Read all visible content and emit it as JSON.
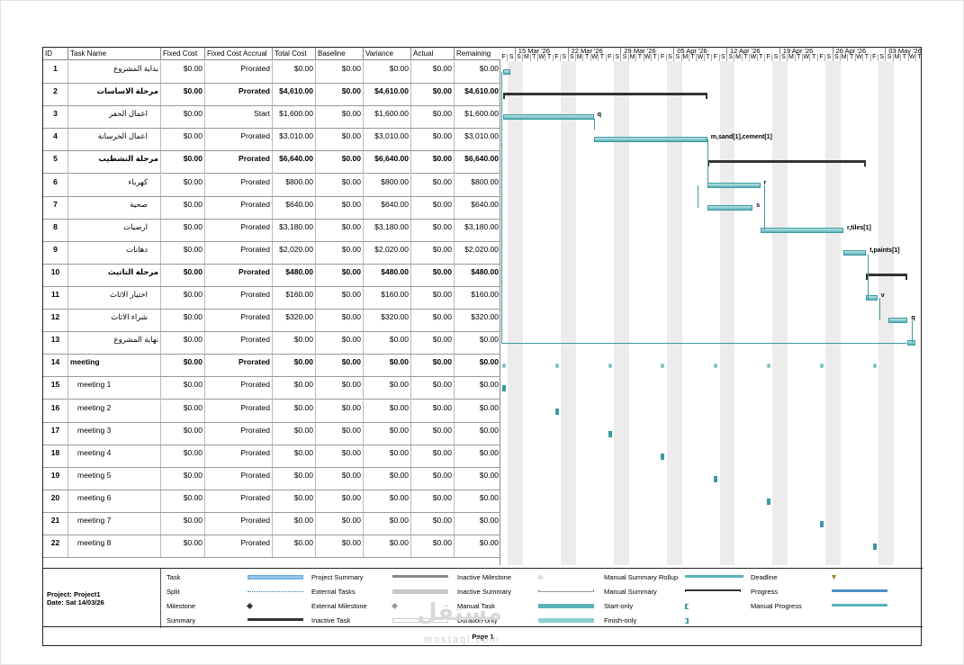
{
  "columns": [
    "ID",
    "Task Name",
    "Fixed Cost",
    "Fixed Cost Accrual",
    "Total Cost",
    "Baseline",
    "Variance",
    "Actual",
    "Remaining"
  ],
  "tasks": [
    {
      "id": "1",
      "name": "بداية المشروع",
      "fc": "$0.00",
      "fca": "Prorated",
      "tc": "$0.00",
      "bl": "$0.00",
      "var": "$0.00",
      "act": "$0.00",
      "rem": "$0.00",
      "rtl": true,
      "bold": false,
      "indent": 0
    },
    {
      "id": "2",
      "name": "مرحلة الاساسات",
      "fc": "$0.00",
      "fca": "Prorated",
      "tc": "$4,610.00",
      "bl": "$0.00",
      "var": "$4,610.00",
      "act": "$0.00",
      "rem": "$4,610.00",
      "rtl": true,
      "bold": true,
      "indent": 0
    },
    {
      "id": "3",
      "name": "اعمال الحفر",
      "fc": "$0.00",
      "fca": "Start",
      "tc": "$1,600.00",
      "bl": "$0.00",
      "var": "$1,600.00",
      "act": "$0.00",
      "rem": "$1,600.00",
      "rtl": true,
      "bold": false,
      "indent": 1
    },
    {
      "id": "4",
      "name": "اعمال الخرسانة",
      "fc": "$0.00",
      "fca": "Prorated",
      "tc": "$3,010.00",
      "bl": "$0.00",
      "var": "$3,010.00",
      "act": "$0.00",
      "rem": "$3,010.00",
      "rtl": true,
      "bold": false,
      "indent": 1
    },
    {
      "id": "5",
      "name": "مرحلة التشطيب",
      "fc": "$0.00",
      "fca": "Prorated",
      "tc": "$6,640.00",
      "bl": "$0.00",
      "var": "$6,640.00",
      "act": "$0.00",
      "rem": "$6,640.00",
      "rtl": true,
      "bold": true,
      "indent": 0
    },
    {
      "id": "6",
      "name": "كهرباء",
      "fc": "$0.00",
      "fca": "Prorated",
      "tc": "$800.00",
      "bl": "$0.00",
      "var": "$800.00",
      "act": "$0.00",
      "rem": "$800.00",
      "rtl": true,
      "bold": false,
      "indent": 1
    },
    {
      "id": "7",
      "name": "صحية",
      "fc": "$0.00",
      "fca": "Prorated",
      "tc": "$640.00",
      "bl": "$0.00",
      "var": "$640.00",
      "act": "$0.00",
      "rem": "$640.00",
      "rtl": true,
      "bold": false,
      "indent": 1
    },
    {
      "id": "8",
      "name": "ارضيات",
      "fc": "$0.00",
      "fca": "Prorated",
      "tc": "$3,180.00",
      "bl": "$0.00",
      "var": "$3,180.00",
      "act": "$0.00",
      "rem": "$3,180.00",
      "rtl": true,
      "bold": false,
      "indent": 1
    },
    {
      "id": "9",
      "name": "دهانات",
      "fc": "$0.00",
      "fca": "Prorated",
      "tc": "$2,020.00",
      "bl": "$0.00",
      "var": "$2,020.00",
      "act": "$0.00",
      "rem": "$2,020.00",
      "rtl": true,
      "bold": false,
      "indent": 1
    },
    {
      "id": "10",
      "name": "مرحلة التاثيث",
      "fc": "$0.00",
      "fca": "Prorated",
      "tc": "$480.00",
      "bl": "$0.00",
      "var": "$480.00",
      "act": "$0.00",
      "rem": "$480.00",
      "rtl": true,
      "bold": true,
      "indent": 0
    },
    {
      "id": "11",
      "name": "اختيار الاثاث",
      "fc": "$0.00",
      "fca": "Prorated",
      "tc": "$160.00",
      "bl": "$0.00",
      "var": "$160.00",
      "act": "$0.00",
      "rem": "$160.00",
      "rtl": true,
      "bold": false,
      "indent": 1
    },
    {
      "id": "12",
      "name": "شراء الاثاث",
      "fc": "$0.00",
      "fca": "Prorated",
      "tc": "$320.00",
      "bl": "$0.00",
      "var": "$320.00",
      "act": "$0.00",
      "rem": "$320.00",
      "rtl": true,
      "bold": false,
      "indent": 1
    },
    {
      "id": "13",
      "name": "نهاية المشروع",
      "fc": "$0.00",
      "fca": "Prorated",
      "tc": "$0.00",
      "bl": "$0.00",
      "var": "$0.00",
      "act": "$0.00",
      "rem": "$0.00",
      "rtl": true,
      "bold": false,
      "indent": 0
    },
    {
      "id": "14",
      "name": "meeting",
      "fc": "$0.00",
      "fca": "Prorated",
      "tc": "$0.00",
      "bl": "$0.00",
      "var": "$0.00",
      "act": "$0.00",
      "rem": "$0.00",
      "rtl": false,
      "bold": true,
      "indent": 0
    },
    {
      "id": "15",
      "name": "meeting 1",
      "fc": "$0.00",
      "fca": "Prorated",
      "tc": "$0.00",
      "bl": "$0.00",
      "var": "$0.00",
      "act": "$0.00",
      "rem": "$0.00",
      "rtl": false,
      "bold": false,
      "indent": 1
    },
    {
      "id": "16",
      "name": "meeting 2",
      "fc": "$0.00",
      "fca": "Prorated",
      "tc": "$0.00",
      "bl": "$0.00",
      "var": "$0.00",
      "act": "$0.00",
      "rem": "$0.00",
      "rtl": false,
      "bold": false,
      "indent": 1
    },
    {
      "id": "17",
      "name": "meeting 3",
      "fc": "$0.00",
      "fca": "Prorated",
      "tc": "$0.00",
      "bl": "$0.00",
      "var": "$0.00",
      "act": "$0.00",
      "rem": "$0.00",
      "rtl": false,
      "bold": false,
      "indent": 1
    },
    {
      "id": "18",
      "name": "meeting 4",
      "fc": "$0.00",
      "fca": "Prorated",
      "tc": "$0.00",
      "bl": "$0.00",
      "var": "$0.00",
      "act": "$0.00",
      "rem": "$0.00",
      "rtl": false,
      "bold": false,
      "indent": 1
    },
    {
      "id": "19",
      "name": "meeting 5",
      "fc": "$0.00",
      "fca": "Prorated",
      "tc": "$0.00",
      "bl": "$0.00",
      "var": "$0.00",
      "act": "$0.00",
      "rem": "$0.00",
      "rtl": false,
      "bold": false,
      "indent": 1
    },
    {
      "id": "20",
      "name": "meeting 6",
      "fc": "$0.00",
      "fca": "Prorated",
      "tc": "$0.00",
      "bl": "$0.00",
      "var": "$0.00",
      "act": "$0.00",
      "rem": "$0.00",
      "rtl": false,
      "bold": false,
      "indent": 1
    },
    {
      "id": "21",
      "name": "meeting 7",
      "fc": "$0.00",
      "fca": "Prorated",
      "tc": "$0.00",
      "bl": "$0.00",
      "var": "$0.00",
      "act": "$0.00",
      "rem": "$0.00",
      "rtl": false,
      "bold": false,
      "indent": 1
    },
    {
      "id": "22",
      "name": "meeting 8",
      "fc": "$0.00",
      "fca": "Prorated",
      "tc": "$0.00",
      "bl": "$0.00",
      "var": "$0.00",
      "act": "$0.00",
      "rem": "$0.00",
      "rtl": false,
      "bold": false,
      "indent": 1
    }
  ],
  "timeline": {
    "weeks": [
      "15 Mar '26",
      "22 Mar '26",
      "29 Mar '26",
      "05 Apr '26",
      "12 Apr '26",
      "19 Apr '26",
      "26 Apr '26",
      "03 May '26"
    ],
    "lead_days": [
      "F",
      "S"
    ],
    "week_days": [
      "S",
      "M",
      "T",
      "W",
      "T",
      "F",
      "S"
    ]
  },
  "resource_labels": {
    "3": "q",
    "4": "m,sand[1],cement[1]",
    "6": "r",
    "7": "s",
    "8": "r,tiles[1]",
    "9": "t,paints[1]",
    "11": "v",
    "12": "q"
  },
  "legend": {
    "project": "Project: Project1",
    "date": "Date: Sat 14/03/26",
    "items": [
      "Task",
      "Split",
      "Milestone",
      "Summary",
      "Project Summary",
      "External Tasks",
      "External Milestone",
      "Inactive Task",
      "Inactive Milestone",
      "Inactive Summary",
      "Manual Task",
      "Duration-only",
      "Manual Summary Rollup",
      "Manual Summary",
      "Start-only",
      "Finish-only",
      "Deadline",
      "Progress",
      "Manual Progress"
    ]
  },
  "footer": {
    "page": "Page 1"
  },
  "watermark": {
    "text": "مستقل",
    "sub": "mostaql.com"
  },
  "colors": {
    "task_bar": "#5bb2b9",
    "summary_bar": "#333333",
    "weekend": "#ececec",
    "link": "#3b9aa2"
  }
}
